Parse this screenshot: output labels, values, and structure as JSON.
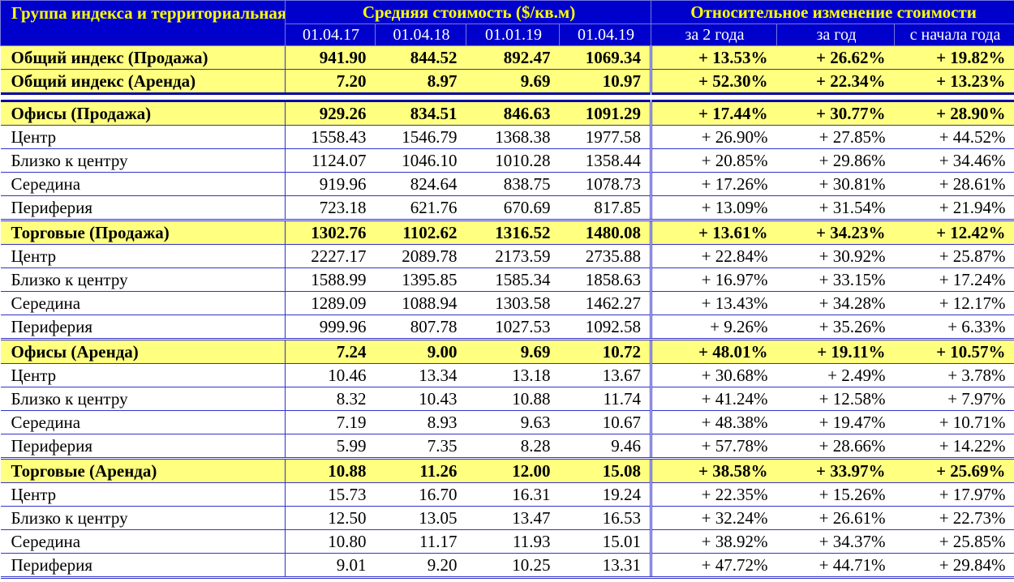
{
  "header": {
    "group_title": "Группа индекса и территориальная зона Киева",
    "avg_title": "Средняя стоимость ($/кв.м)",
    "rel_title": "Относительное изменение стоимости",
    "dates": [
      "01.04.17",
      "01.04.18",
      "01.01.19",
      "01.04.19"
    ],
    "periods": [
      "за 2 года",
      "за год",
      "с начала года"
    ]
  },
  "summary_rows": [
    {
      "label": "Общий индекс (Продажа)",
      "values": [
        "941.90",
        "844.52",
        "892.47",
        "1069.34"
      ],
      "changes": [
        "+ 13.53%",
        "+ 26.62%",
        "+ 19.82%"
      ]
    },
    {
      "label": "Общий индекс (Аренда)",
      "values": [
        "7.20",
        "8.97",
        "9.69",
        "10.97"
      ],
      "changes": [
        "+ 52.30%",
        "+ 22.34%",
        "+ 13.23%"
      ]
    }
  ],
  "groups": [
    {
      "label": "Офисы (Продажа)",
      "values": [
        "929.26",
        "834.51",
        "846.63",
        "1091.29"
      ],
      "changes": [
        "+ 17.44%",
        "+ 30.77%",
        "+ 28.90%"
      ],
      "rows": [
        {
          "label": "Центр",
          "values": [
            "1558.43",
            "1546.79",
            "1368.38",
            "1977.58"
          ],
          "changes": [
            "+ 26.90%",
            "+ 27.85%",
            "+ 44.52%"
          ]
        },
        {
          "label": "Близко к центру",
          "values": [
            "1124.07",
            "1046.10",
            "1010.28",
            "1358.44"
          ],
          "changes": [
            "+ 20.85%",
            "+ 29.86%",
            "+ 34.46%"
          ]
        },
        {
          "label": "Середина",
          "values": [
            "919.96",
            "824.64",
            "838.75",
            "1078.73"
          ],
          "changes": [
            "+ 17.26%",
            "+ 30.81%",
            "+ 28.61%"
          ]
        },
        {
          "label": "Периферия",
          "values": [
            "723.18",
            "621.76",
            "670.69",
            "817.85"
          ],
          "changes": [
            "+ 13.09%",
            "+ 31.54%",
            "+ 21.94%"
          ]
        }
      ]
    },
    {
      "label": "Торговые (Продажа)",
      "values": [
        "1302.76",
        "1102.62",
        "1316.52",
        "1480.08"
      ],
      "changes": [
        "+ 13.61%",
        "+ 34.23%",
        "+ 12.42%"
      ],
      "rows": [
        {
          "label": "Центр",
          "values": [
            "2227.17",
            "2089.78",
            "2173.59",
            "2735.88"
          ],
          "changes": [
            "+ 22.84%",
            "+ 30.92%",
            "+ 25.87%"
          ]
        },
        {
          "label": "Близко к центру",
          "values": [
            "1588.99",
            "1395.85",
            "1585.34",
            "1858.63"
          ],
          "changes": [
            "+ 16.97%",
            "+ 33.15%",
            "+ 17.24%"
          ]
        },
        {
          "label": "Середина",
          "values": [
            "1289.09",
            "1088.94",
            "1303.58",
            "1462.27"
          ],
          "changes": [
            "+ 13.43%",
            "+ 34.28%",
            "+ 12.17%"
          ]
        },
        {
          "label": "Периферия",
          "values": [
            "999.96",
            "807.78",
            "1027.53",
            "1092.58"
          ],
          "changes": [
            "+ 9.26%",
            "+ 35.26%",
            "+ 6.33%"
          ]
        }
      ]
    },
    {
      "label": "Офисы (Аренда)",
      "values": [
        "7.24",
        "9.00",
        "9.69",
        "10.72"
      ],
      "changes": [
        "+ 48.01%",
        "+ 19.11%",
        "+ 10.57%"
      ],
      "rows": [
        {
          "label": "Центр",
          "values": [
            "10.46",
            "13.34",
            "13.18",
            "13.67"
          ],
          "changes": [
            "+ 30.68%",
            "+ 2.49%",
            "+ 3.78%"
          ]
        },
        {
          "label": "Близко к центру",
          "values": [
            "8.32",
            "10.43",
            "10.88",
            "11.74"
          ],
          "changes": [
            "+ 41.24%",
            "+ 12.58%",
            "+ 7.97%"
          ]
        },
        {
          "label": "Середина",
          "values": [
            "7.19",
            "8.93",
            "9.63",
            "10.67"
          ],
          "changes": [
            "+ 48.38%",
            "+ 19.47%",
            "+ 10.71%"
          ]
        },
        {
          "label": "Периферия",
          "values": [
            "5.99",
            "7.35",
            "8.28",
            "9.46"
          ],
          "changes": [
            "+ 57.78%",
            "+ 28.66%",
            "+ 14.22%"
          ]
        }
      ]
    },
    {
      "label": "Торговые (Аренда)",
      "values": [
        "10.88",
        "11.26",
        "12.00",
        "15.08"
      ],
      "changes": [
        "+ 38.58%",
        "+ 33.97%",
        "+ 25.69%"
      ],
      "rows": [
        {
          "label": "Центр",
          "values": [
            "15.73",
            "16.70",
            "16.31",
            "19.24"
          ],
          "changes": [
            "+ 22.35%",
            "+ 15.26%",
            "+ 17.97%"
          ]
        },
        {
          "label": "Близко к центру",
          "values": [
            "12.50",
            "13.05",
            "13.47",
            "16.53"
          ],
          "changes": [
            "+ 32.24%",
            "+ 26.61%",
            "+ 22.73%"
          ]
        },
        {
          "label": "Середина",
          "values": [
            "10.80",
            "11.17",
            "11.93",
            "15.01"
          ],
          "changes": [
            "+ 38.92%",
            "+ 34.37%",
            "+ 25.85%"
          ]
        },
        {
          "label": "Периферия",
          "values": [
            "9.01",
            "9.20",
            "10.25",
            "13.31"
          ],
          "changes": [
            "+ 47.72%",
            "+ 44.71%",
            "+ 29.84%"
          ]
        }
      ]
    }
  ]
}
